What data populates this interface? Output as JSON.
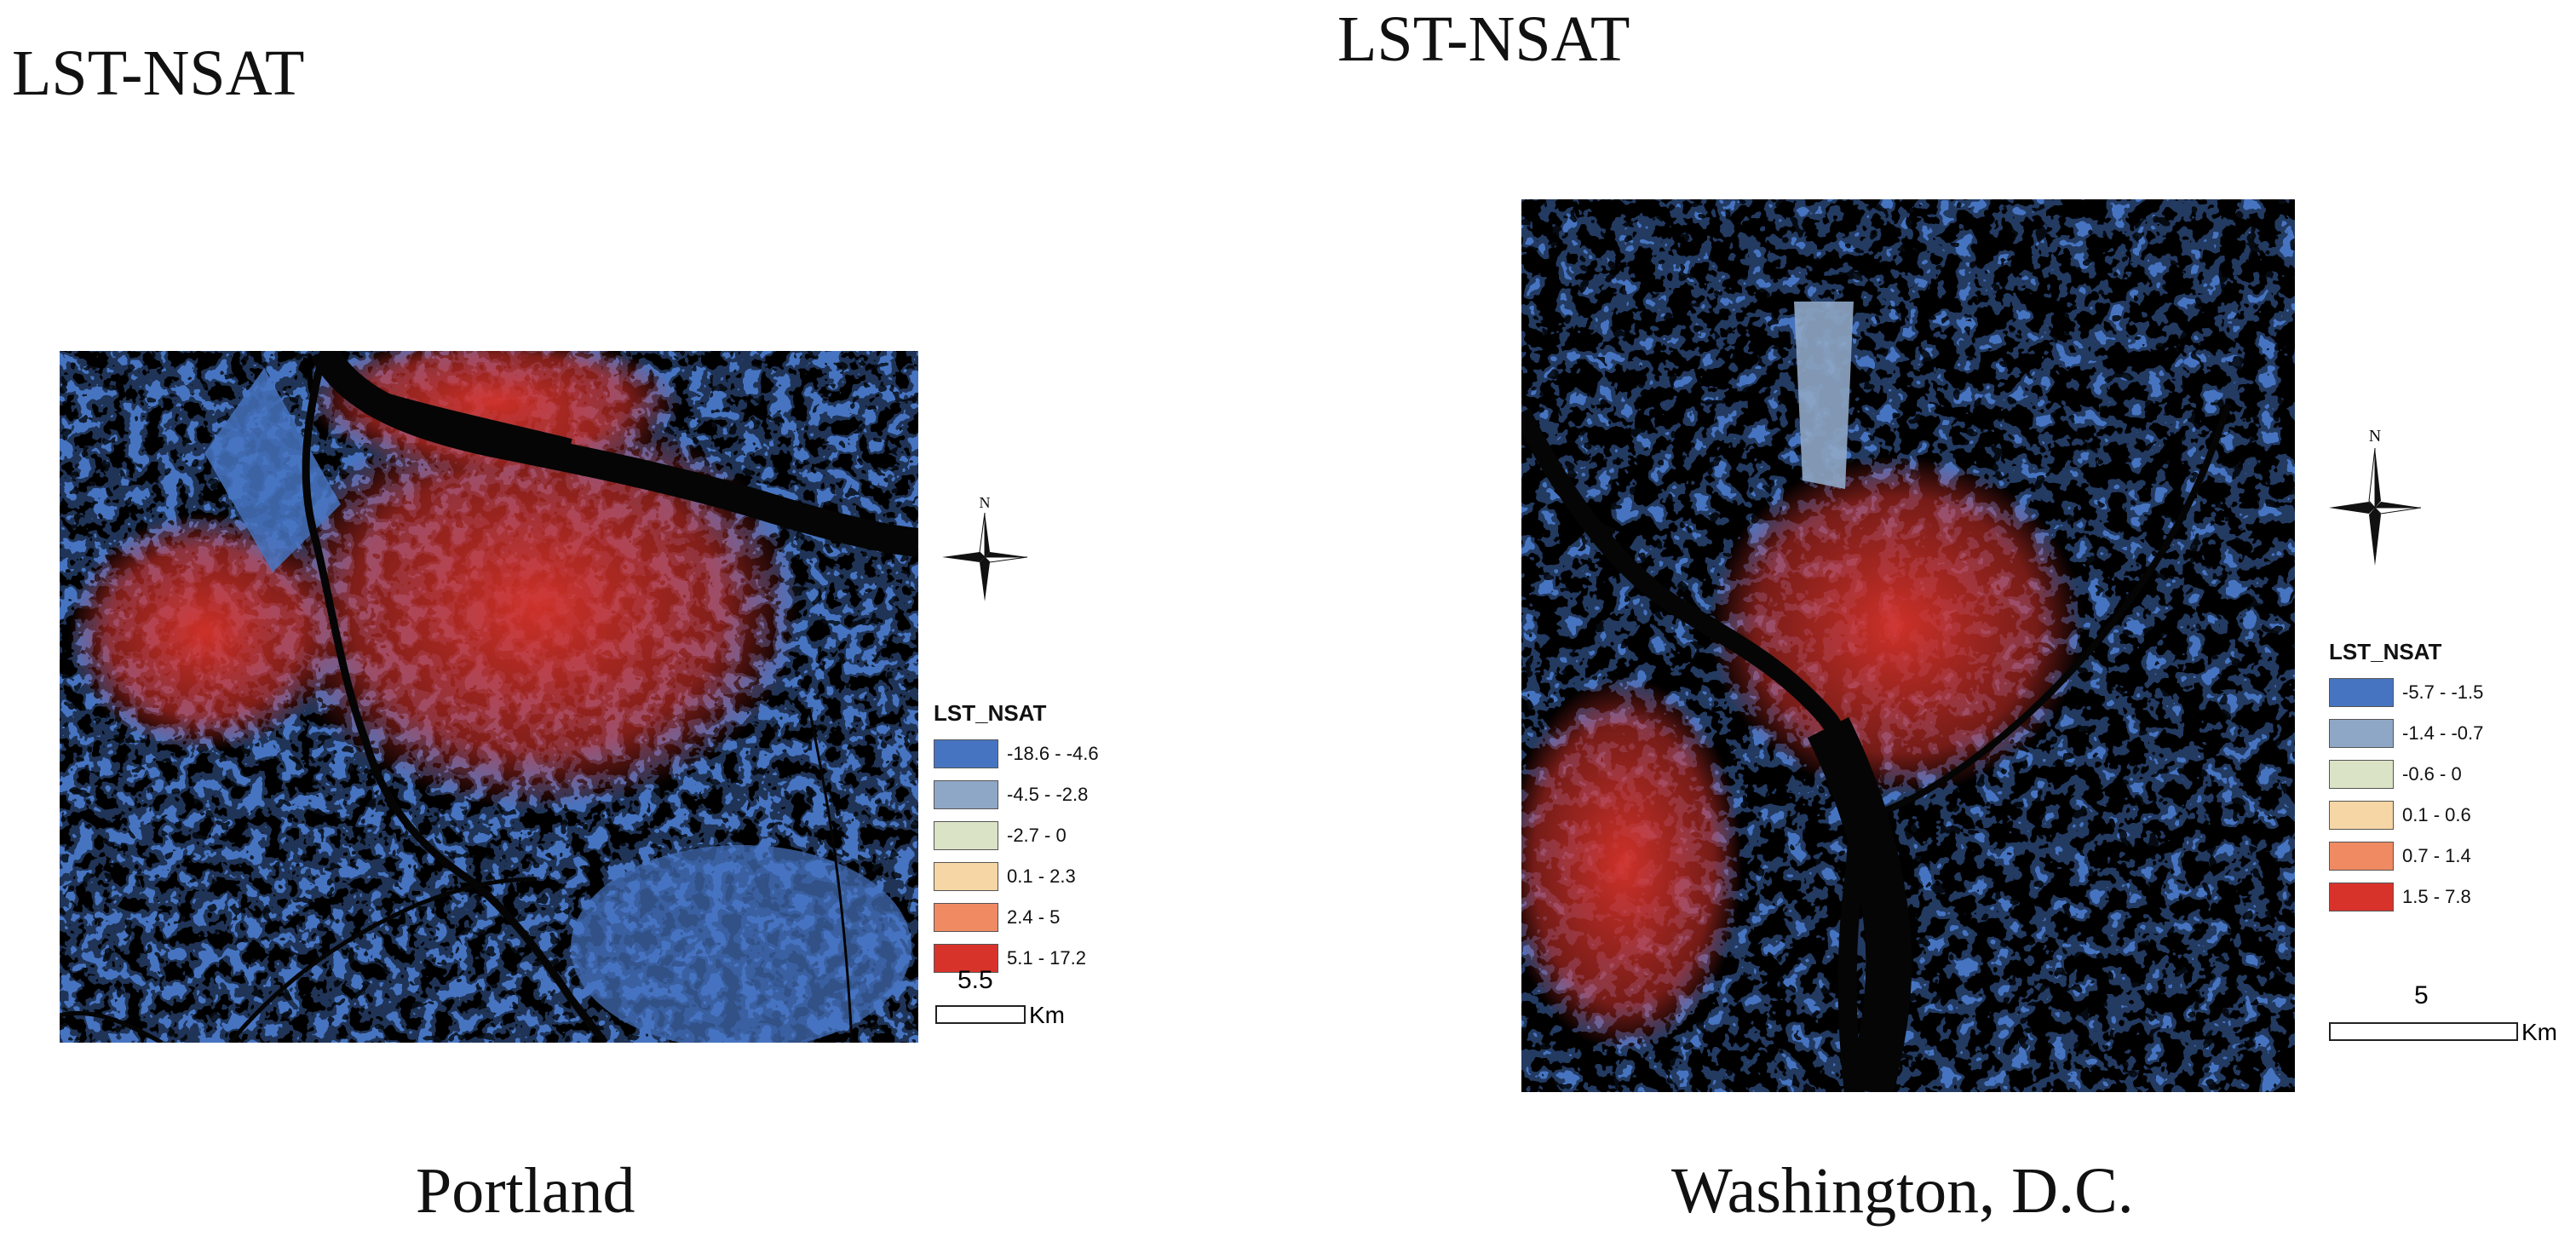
{
  "colors": {
    "class1": "#4674c1",
    "class2": "#8fa7c6",
    "class3": "#dbe3c6",
    "class4": "#f6d6a4",
    "class5": "#ef8a62",
    "class6": "#d7332b",
    "water": "#050505"
  },
  "panels": [
    {
      "title": "LST-NSAT",
      "caption": "Portland",
      "legend": {
        "title": "LST_NSAT",
        "classes": [
          "-18.6 - -4.6",
          "-4.5 - -2.8",
          "-2.7 - 0",
          "0.1 - 2.3",
          "2.4 - 5",
          "5.1 - 17.2"
        ]
      },
      "compass_label": "N",
      "scale_value": "5.5",
      "scale_unit": "Km"
    },
    {
      "title": "LST-NSAT",
      "caption": "Washington, D.C.",
      "legend": {
        "title": "LST_NSAT",
        "classes": [
          "-5.7 - -1.5",
          "-1.4 - -0.7",
          "-0.6 - 0",
          "0.1 - 0.6",
          "0.7 - 1.4",
          "1.5 - 7.8"
        ]
      },
      "compass_label": "N",
      "scale_value": "5",
      "scale_unit": "Km"
    }
  ]
}
